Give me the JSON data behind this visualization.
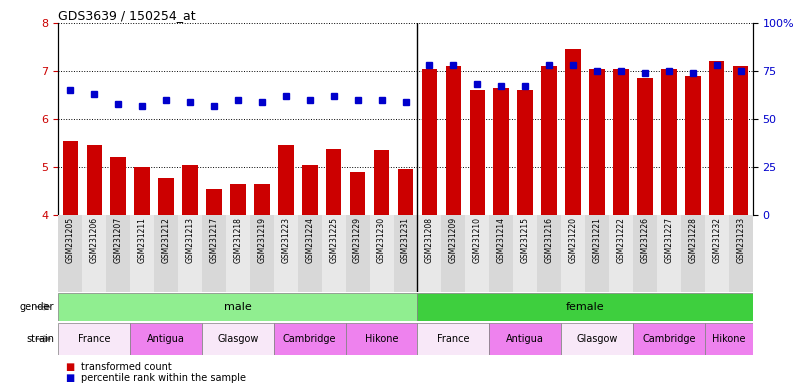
{
  "title": "GDS3639 / 150254_at",
  "samples": [
    "GSM231205",
    "GSM231206",
    "GSM231207",
    "GSM231211",
    "GSM231212",
    "GSM231213",
    "GSM231217",
    "GSM231218",
    "GSM231219",
    "GSM231223",
    "GSM231224",
    "GSM231225",
    "GSM231229",
    "GSM231230",
    "GSM231231",
    "GSM231208",
    "GSM231209",
    "GSM231210",
    "GSM231214",
    "GSM231215",
    "GSM231216",
    "GSM231220",
    "GSM231221",
    "GSM231222",
    "GSM231226",
    "GSM231227",
    "GSM231228",
    "GSM231232",
    "GSM231233"
  ],
  "bar_values": [
    5.55,
    5.45,
    5.2,
    5.0,
    4.78,
    5.05,
    4.55,
    4.65,
    4.65,
    5.45,
    5.05,
    5.38,
    4.9,
    5.35,
    4.95,
    7.05,
    7.1,
    6.6,
    6.65,
    6.6,
    7.1,
    7.45,
    7.05,
    7.05,
    6.85,
    7.05,
    6.9,
    7.2,
    7.1
  ],
  "dot_values": [
    65,
    63,
    58,
    57,
    60,
    59,
    57,
    60,
    59,
    62,
    60,
    62,
    60,
    60,
    59,
    78,
    78,
    68,
    67,
    67,
    78,
    78,
    75,
    75,
    74,
    75,
    74,
    78,
    75
  ],
  "ylim_left": [
    4,
    8
  ],
  "ylim_right": [
    0,
    100
  ],
  "yticks_left": [
    4,
    5,
    6,
    7,
    8
  ],
  "yticks_right": [
    0,
    25,
    50,
    75,
    100
  ],
  "bar_color": "#cc0000",
  "dot_color": "#0000cc",
  "gender_color_male": "#90ee90",
  "gender_color_female": "#3ecf3e",
  "strain_color_france": "#f8e8f8",
  "strain_color_antigua": "#ee82ee",
  "strain_color_glasgow": "#f8e8f8",
  "strain_color_cambridge": "#ee82ee",
  "strain_color_hikone": "#ee82ee",
  "male_count": 15,
  "female_count": 14,
  "male_strains": [
    {
      "label": "France",
      "count": 3
    },
    {
      "label": "Antigua",
      "count": 3
    },
    {
      "label": "Glasgow",
      "count": 3
    },
    {
      "label": "Cambridge",
      "count": 3
    },
    {
      "label": "Hikone",
      "count": 3
    }
  ],
  "female_strains": [
    {
      "label": "France",
      "count": 3
    },
    {
      "label": "Antigua",
      "count": 3
    },
    {
      "label": "Glasgow",
      "count": 3
    },
    {
      "label": "Cambridge",
      "count": 3
    },
    {
      "label": "Hikone",
      "count": 2
    }
  ]
}
